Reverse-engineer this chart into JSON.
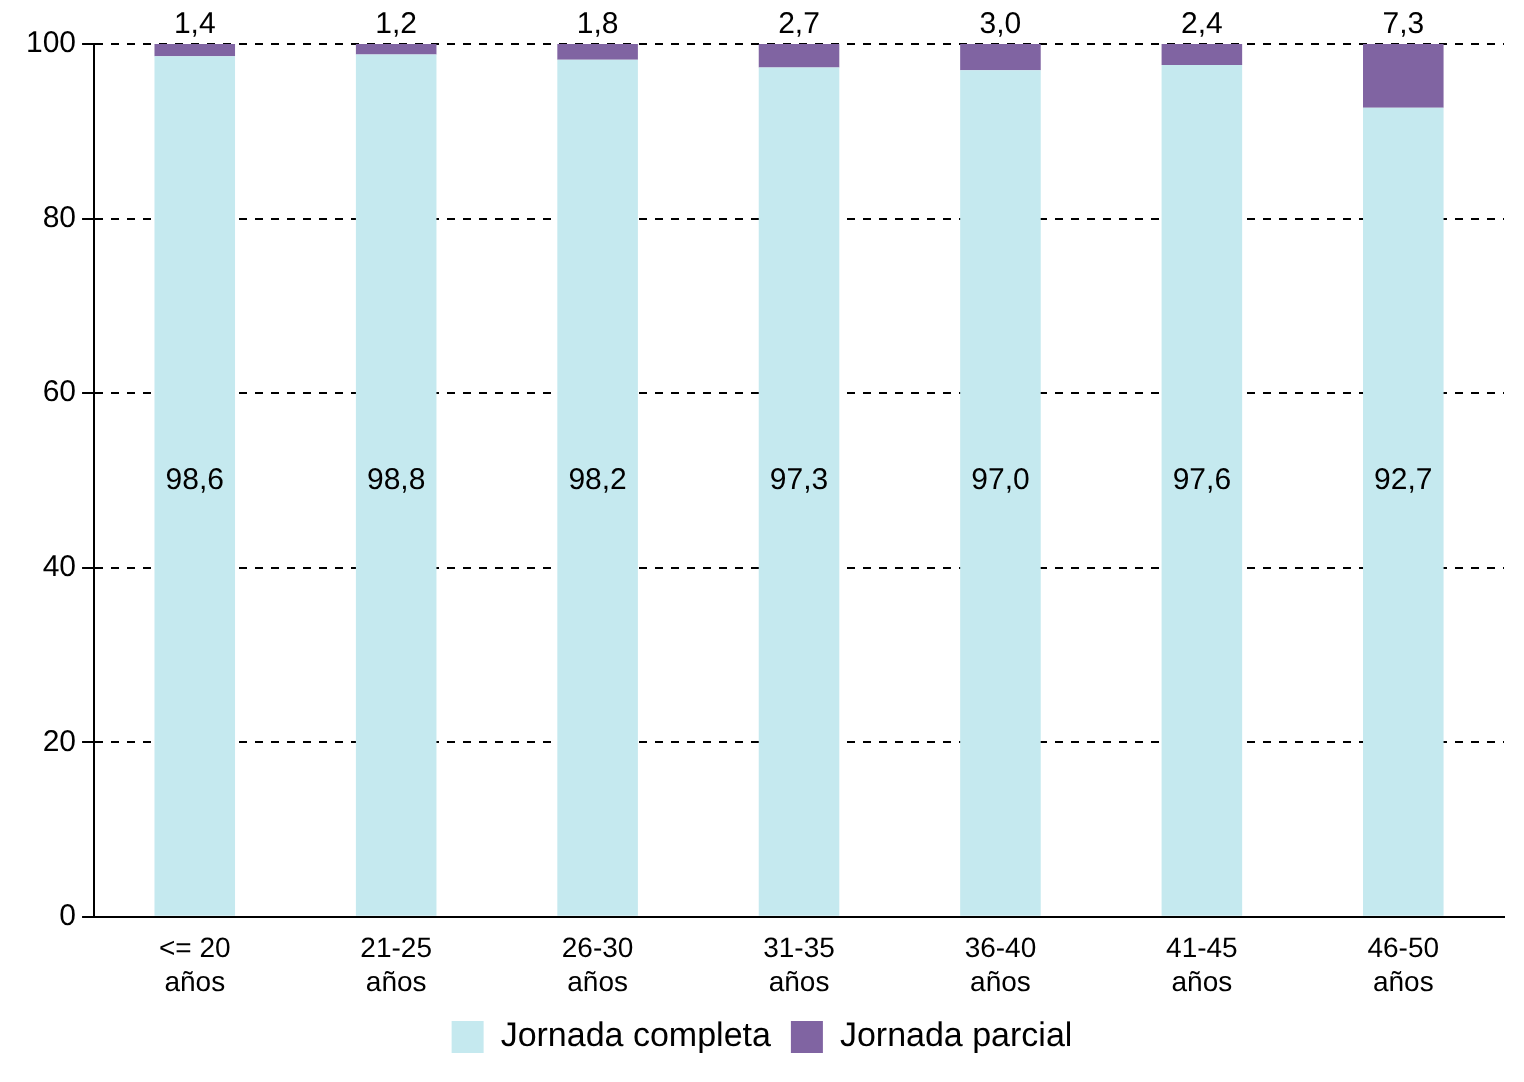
{
  "chart_data": {
    "type": "bar",
    "stacked": true,
    "categories": [
      "<= 20 años",
      "21-25 años",
      "26-30 años",
      "31-35 años",
      "36-40 años",
      "41-45 años",
      "46-50 años"
    ],
    "series": [
      {
        "name": "Jornada completa",
        "color": "#c5e9ef",
        "values": [
          98.6,
          98.8,
          98.2,
          97.3,
          97.0,
          97.6,
          92.7
        ],
        "value_labels": [
          "98,6",
          "98,8",
          "98,2",
          "97,3",
          "97,0",
          "97,6",
          "92,7"
        ]
      },
      {
        "name": "Jornada parcial",
        "color": "#8064a2",
        "values": [
          1.4,
          1.2,
          1.8,
          2.7,
          3.0,
          2.4,
          7.3
        ],
        "value_labels": [
          "1,4",
          "1,2",
          "1,8",
          "2,7",
          "3,0",
          "2,4",
          "7,3"
        ]
      }
    ],
    "ylim": [
      0,
      100
    ],
    "yticks": [
      0,
      20,
      40,
      60,
      80,
      100
    ],
    "grid": "y",
    "legend": "bottom"
  }
}
